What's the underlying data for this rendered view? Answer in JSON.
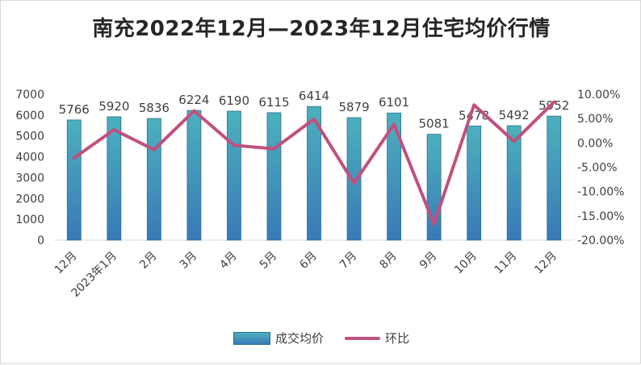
{
  "chart_data": {
    "type": "bar",
    "title": "南充2022年12月—2023年12月住宅均价行情",
    "categories": [
      "12月",
      "2023年1月",
      "2月",
      "3月",
      "4月",
      "5月",
      "6月",
      "7月",
      "8月",
      "9月",
      "10月",
      "11月",
      "12月"
    ],
    "series": [
      {
        "name": "成交均价",
        "type": "bar",
        "axis": "left",
        "values": [
          5766,
          5920,
          5836,
          6224,
          6190,
          6115,
          6414,
          5879,
          6101,
          5081,
          5478,
          5492,
          5952
        ],
        "color": "#4bb1bd"
      },
      {
        "name": "环比",
        "type": "line",
        "axis": "right",
        "values": [
          -3.1,
          2.7,
          -1.4,
          6.6,
          -0.5,
          -1.2,
          4.9,
          -8.3,
          3.8,
          -16.7,
          7.8,
          0.3,
          8.4
        ],
        "unit": "%",
        "color": "#c0507e"
      }
    ],
    "left_axis": {
      "ylim": [
        0,
        7000
      ],
      "ticks": [
        "0",
        "1000",
        "2000",
        "3000",
        "4000",
        "5000",
        "6000",
        "7000"
      ]
    },
    "right_axis": {
      "ylim": [
        -20,
        10
      ],
      "ticks": [
        "-20.00%",
        "-15.00%",
        "-10.00%",
        "-5.00%",
        "0.00%",
        "5.00%",
        "10.00%"
      ]
    },
    "data_labels": [
      "5766",
      "5920",
      "5836",
      "6224",
      "6190",
      "6115",
      "6414",
      "5879",
      "6101",
      "5081",
      "5478",
      "5492",
      "5952"
    ],
    "grid": false,
    "legend_position": "bottom"
  }
}
